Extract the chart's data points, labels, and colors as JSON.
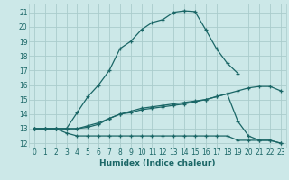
{
  "xlabel": "Humidex (Indice chaleur)",
  "bg_color": "#cce8e8",
  "grid_color": "#aacccc",
  "line_color": "#1a6666",
  "xlim": [
    -0.5,
    23.5
  ],
  "ylim": [
    11.7,
    21.6
  ],
  "yticks": [
    12,
    13,
    14,
    15,
    16,
    17,
    18,
    19,
    20,
    21
  ],
  "xticks": [
    0,
    1,
    2,
    3,
    4,
    5,
    6,
    7,
    8,
    9,
    10,
    11,
    12,
    13,
    14,
    15,
    16,
    17,
    18,
    19,
    20,
    21,
    22,
    23
  ],
  "lines": [
    {
      "x": [
        0,
        1,
        2,
        3,
        4,
        5,
        6,
        7,
        8,
        9,
        10,
        11,
        12,
        13,
        14,
        15,
        16,
        17,
        18,
        19
      ],
      "y": [
        13,
        13,
        13,
        13,
        14.1,
        15.2,
        16.0,
        17.0,
        18.5,
        19.0,
        19.8,
        20.3,
        20.5,
        21.0,
        21.1,
        21.05,
        19.8,
        18.5,
        17.5,
        16.8
      ]
    },
    {
      "x": [
        0,
        1,
        2,
        3,
        4,
        5,
        6,
        7,
        8,
        9,
        10,
        11,
        12,
        13,
        14,
        15,
        16,
        17,
        18,
        19,
        20,
        21,
        22,
        23
      ],
      "y": [
        13,
        13,
        13,
        13,
        13.0,
        13.1,
        13.3,
        13.7,
        14.0,
        14.2,
        14.4,
        14.5,
        14.6,
        14.7,
        14.8,
        14.9,
        15.0,
        15.2,
        15.4,
        15.6,
        15.8,
        15.9,
        15.9,
        15.6
      ]
    },
    {
      "x": [
        0,
        1,
        2,
        3,
        4,
        5,
        6,
        7,
        8,
        9,
        10,
        11,
        12,
        13,
        14,
        15,
        16,
        17,
        18,
        19,
        20,
        21,
        22,
        23
      ],
      "y": [
        13,
        13,
        13,
        12.7,
        12.5,
        12.5,
        12.5,
        12.5,
        12.5,
        12.5,
        12.5,
        12.5,
        12.5,
        12.5,
        12.5,
        12.5,
        12.5,
        12.5,
        12.5,
        12.2,
        12.2,
        12.2,
        12.2,
        12.0
      ]
    },
    {
      "x": [
        0,
        1,
        2,
        3,
        4,
        5,
        6,
        7,
        8,
        9,
        10,
        11,
        12,
        13,
        14,
        15,
        16,
        17,
        18,
        19,
        20,
        21,
        22,
        23
      ],
      "y": [
        13,
        13,
        13,
        13,
        13.0,
        13.2,
        13.4,
        13.7,
        14.0,
        14.1,
        14.3,
        14.4,
        14.5,
        14.6,
        14.7,
        14.85,
        15.0,
        15.2,
        15.4,
        13.5,
        12.5,
        12.2,
        12.2,
        12.0
      ]
    }
  ]
}
